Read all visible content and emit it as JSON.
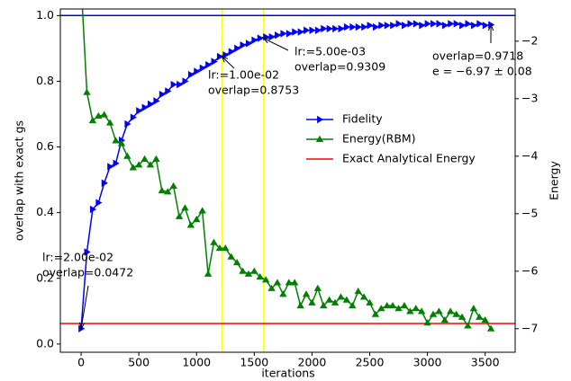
{
  "chart_data": {
    "type": "line",
    "xlabel": "iterations",
    "ylabel": "overlap with exact gs",
    "y2label": "Energy",
    "x": [
      0,
      50,
      100,
      150,
      200,
      250,
      300,
      350,
      400,
      450,
      500,
      550,
      600,
      650,
      700,
      750,
      800,
      850,
      900,
      950,
      1000,
      1050,
      1100,
      1150,
      1200,
      1250,
      1300,
      1350,
      1400,
      1450,
      1500,
      1550,
      1600,
      1650,
      1700,
      1750,
      1800,
      1850,
      1900,
      1950,
      2000,
      2050,
      2100,
      2150,
      2200,
      2250,
      2300,
      2350,
      2400,
      2450,
      2500,
      2550,
      2600,
      2650,
      2700,
      2750,
      2800,
      2850,
      2900,
      2950,
      3000,
      3050,
      3100,
      3150,
      3200,
      3250,
      3300,
      3350,
      3400,
      3450,
      3500,
      3550
    ],
    "series": [
      {
        "name": "Fidelity",
        "color": "#0000ff",
        "marker": "triangle-right",
        "axis": "y",
        "values": [
          0.047,
          0.28,
          0.41,
          0.43,
          0.49,
          0.54,
          0.55,
          0.62,
          0.67,
          0.69,
          0.71,
          0.72,
          0.73,
          0.74,
          0.76,
          0.77,
          0.79,
          0.79,
          0.8,
          0.82,
          0.83,
          0.84,
          0.85,
          0.86,
          0.875,
          0.88,
          0.89,
          0.9,
          0.91,
          0.915,
          0.925,
          0.931,
          0.935,
          0.935,
          0.94,
          0.945,
          0.945,
          0.95,
          0.95,
          0.955,
          0.955,
          0.955,
          0.96,
          0.96,
          0.96,
          0.96,
          0.965,
          0.965,
          0.965,
          0.965,
          0.97,
          0.965,
          0.97,
          0.97,
          0.97,
          0.975,
          0.97,
          0.975,
          0.975,
          0.97,
          0.975,
          0.975,
          0.975,
          0.97,
          0.975,
          0.975,
          0.97,
          0.975,
          0.97,
          0.975,
          0.97,
          0.972
        ]
      },
      {
        "name": "Energy(RBM)",
        "color": "#008000",
        "marker": "triangle-up",
        "axis": "y2",
        "values": [
          -1.0,
          -2.89,
          -3.38,
          -3.3,
          -3.28,
          -3.42,
          -3.73,
          -3.78,
          -4.0,
          -4.2,
          -4.15,
          -4.05,
          -4.15,
          -4.05,
          -4.6,
          -4.62,
          -4.52,
          -5.05,
          -4.9,
          -5.2,
          -5.1,
          -4.95,
          -6.05,
          -5.5,
          -5.6,
          -5.6,
          -5.75,
          -5.85,
          -6.0,
          -6.05,
          -6.0,
          -6.1,
          -6.15,
          -6.3,
          -6.2,
          -6.4,
          -6.2,
          -6.2,
          -6.6,
          -6.4,
          -6.55,
          -6.3,
          -6.6,
          -6.5,
          -6.55,
          -6.45,
          -6.5,
          -6.6,
          -6.35,
          -6.45,
          -6.55,
          -6.75,
          -6.65,
          -6.6,
          -6.6,
          -6.65,
          -6.6,
          -6.7,
          -6.65,
          -6.7,
          -6.9,
          -6.75,
          -6.7,
          -6.85,
          -6.7,
          -6.75,
          -6.8,
          -6.95,
          -6.65,
          -6.8,
          -6.85,
          -7.0
        ]
      }
    ],
    "hlines": [
      {
        "name": "Exact Analytical Energy",
        "color": "#ff0000",
        "value": -6.91,
        "axis": "y2"
      },
      {
        "color": "#0000ff",
        "value": 1.0,
        "axis": "y"
      }
    ],
    "vlines": {
      "color": "#ffff00",
      "values": [
        1220,
        1580
      ]
    },
    "annotations": [
      {
        "lines": [
          "lr:=2.00e-02",
          "overlap=0.0472"
        ],
        "x": 0,
        "y": 0.0472
      },
      {
        "lines": [
          "lr:=1.00e-02",
          "overlap=0.8753"
        ],
        "x": 1220,
        "y": 0.8753
      },
      {
        "lines": [
          "lr:=5.00e-03",
          "overlap=0.9309"
        ],
        "x": 1580,
        "y": 0.9309
      },
      {
        "lines": [
          "overlap=0.9718",
          "e = −6.97 ± 0.08"
        ],
        "x": 3550,
        "y": 0.9718
      }
    ],
    "xlim": [
      -180,
      3760
    ],
    "ylim": [
      -0.025,
      1.02
    ],
    "y2lim": [
      -7.41,
      -1.44
    ],
    "xticks": [
      0,
      500,
      1000,
      1500,
      2000,
      2500,
      3000,
      3500
    ],
    "yticks": [
      {
        "value": 0,
        "label": "0.0"
      },
      0.2,
      0.4,
      0.6,
      0.8,
      {
        "value": 1,
        "label": "1.0"
      }
    ],
    "y2ticks": [
      {
        "value": -7,
        "label": "−7"
      },
      {
        "value": -6,
        "label": "−6"
      },
      {
        "value": -5,
        "label": "−5"
      },
      {
        "value": -4,
        "label": "−4"
      },
      {
        "value": -3,
        "label": "−3"
      },
      {
        "value": -2,
        "label": "−2"
      }
    ],
    "legend": "center right"
  }
}
